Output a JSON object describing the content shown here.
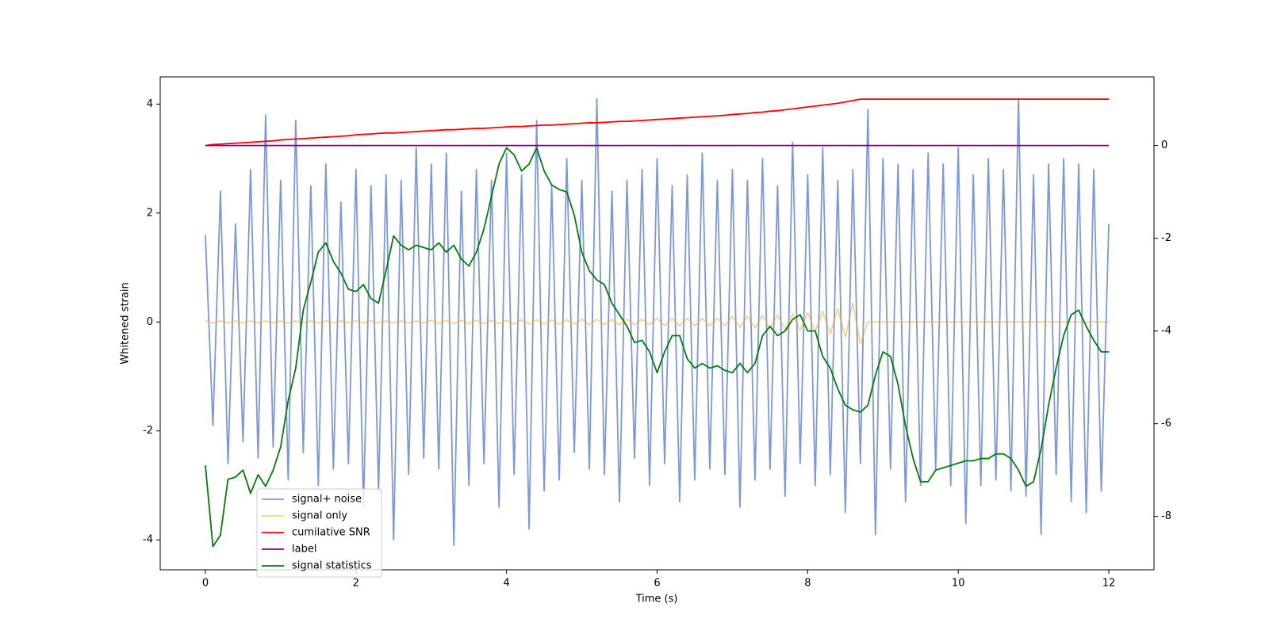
{
  "chart_data": {
    "type": "line",
    "xlabel": "Time (s)",
    "ylabel": "Whitened strain",
    "x": [
      0,
      0.1,
      0.2,
      0.3,
      0.4,
      0.5,
      0.6,
      0.7,
      0.8,
      0.9,
      1,
      1.1,
      1.2,
      1.3,
      1.4,
      1.5,
      1.6,
      1.7,
      1.8,
      1.9,
      2,
      2.1,
      2.2,
      2.3,
      2.4,
      2.5,
      2.6,
      2.7,
      2.8,
      2.9,
      3,
      3.1,
      3.2,
      3.3,
      3.4,
      3.5,
      3.6,
      3.7,
      3.8,
      3.9,
      4,
      4.1,
      4.2,
      4.3,
      4.4,
      4.5,
      4.6,
      4.7,
      4.8,
      4.9,
      5,
      5.1,
      5.2,
      5.3,
      5.4,
      5.5,
      5.6,
      5.7,
      5.8,
      5.9,
      6,
      6.1,
      6.2,
      6.3,
      6.4,
      6.5,
      6.6,
      6.7,
      6.8,
      6.9,
      7,
      7.1,
      7.2,
      7.3,
      7.4,
      7.5,
      7.6,
      7.7,
      7.8,
      7.9,
      8,
      8.1,
      8.2,
      8.3,
      8.4,
      8.5,
      8.6,
      8.7,
      8.8,
      8.9,
      9,
      9.1,
      9.2,
      9.3,
      9.4,
      9.5,
      9.6,
      9.7,
      9.8,
      9.9,
      10,
      10.1,
      10.2,
      10.3,
      10.4,
      10.5,
      10.6,
      10.7,
      10.8,
      10.9,
      11,
      11.1,
      11.2,
      11.3,
      11.4,
      11.5,
      11.6,
      11.7,
      11.8,
      11.9,
      12
    ],
    "series": [
      {
        "name": "signal+ noise",
        "color": "#4169e1",
        "alpha": 0.7,
        "values": [
          1.6,
          -1.9,
          2.4,
          -2.6,
          1.8,
          -2.2,
          2.8,
          -2.5,
          3.8,
          -2.3,
          2.6,
          -2.9,
          3.7,
          -2.4,
          2.5,
          -3.0,
          2.9,
          -2.7,
          2.2,
          -2.6,
          2.8,
          -3.4,
          2.5,
          -3.1,
          2.7,
          -4.0,
          2.6,
          -2.8,
          3.2,
          -2.5,
          2.9,
          -2.7,
          3.1,
          -4.1,
          2.4,
          -3.0,
          2.8,
          -2.6,
          2.6,
          -3.4,
          3.1,
          -2.8,
          2.7,
          -3.8,
          3.7,
          -3.1,
          2.5,
          -2.9,
          3.0,
          -2.4,
          2.6,
          -2.7,
          4.1,
          -2.8,
          2.4,
          -3.3,
          2.6,
          -2.5,
          2.8,
          -3.0,
          3.0,
          -2.6,
          2.5,
          -3.3,
          2.7,
          -2.9,
          3.1,
          -2.7,
          2.6,
          -2.8,
          2.8,
          -3.4,
          2.6,
          -2.9,
          3.0,
          -2.7,
          2.5,
          -3.2,
          3.3,
          -2.6,
          2.7,
          -3.0,
          3.2,
          -2.8,
          2.6,
          -3.5,
          2.8,
          -2.6,
          3.9,
          -3.9,
          3.0,
          -2.7,
          2.9,
          -3.3,
          2.8,
          -3.0,
          3.1,
          -2.7,
          2.9,
          -3.0,
          3.2,
          -3.7,
          2.7,
          -3.0,
          3.0,
          -2.9,
          2.8,
          -3.1,
          4.1,
          -3.2,
          2.7,
          -3.9,
          2.9,
          -2.8,
          3.0,
          -3.3,
          2.9,
          -3.5,
          2.8,
          -3.1,
          1.8
        ]
      },
      {
        "name": "signal only",
        "color": "#ffa500",
        "alpha": 0.5,
        "values": [
          0.02,
          -0.02,
          0.02,
          -0.02,
          0.02,
          -0.02,
          0.02,
          -0.02,
          0.02,
          -0.02,
          0.02,
          -0.02,
          0.02,
          -0.02,
          0.02,
          -0.02,
          0.02,
          -0.02,
          0.02,
          -0.02,
          0.02,
          -0.02,
          0.02,
          -0.02,
          0.02,
          -0.02,
          0.02,
          -0.02,
          0.02,
          -0.02,
          0.03,
          -0.03,
          0.03,
          -0.03,
          0.03,
          -0.03,
          0.03,
          -0.03,
          0.03,
          -0.03,
          0.03,
          -0.04,
          0.04,
          -0.04,
          0.04,
          -0.04,
          0.04,
          -0.04,
          0.04,
          -0.04,
          0.05,
          -0.05,
          0.05,
          -0.05,
          0.05,
          -0.05,
          0.05,
          -0.05,
          0.05,
          -0.05,
          0.07,
          -0.07,
          0.07,
          -0.07,
          0.07,
          -0.07,
          0.07,
          -0.07,
          0.07,
          -0.07,
          0.1,
          -0.1,
          0.11,
          -0.11,
          0.12,
          -0.12,
          0.13,
          -0.13,
          0.15,
          -0.15,
          0.17,
          -0.18,
          0.2,
          -0.22,
          0.25,
          -0.28,
          0.35,
          -0.4,
          0,
          0,
          0,
          0,
          0,
          0,
          0,
          0,
          0,
          0,
          0,
          0,
          0,
          0,
          0,
          0,
          0,
          0,
          0,
          0,
          0,
          0,
          0,
          0,
          0,
          0,
          0,
          0,
          0,
          0,
          0,
          0,
          0
        ]
      },
      {
        "name": "cumilative SNR",
        "color": "#ff0000",
        "axis": "y2",
        "values": [
          0,
          0.02,
          0.03,
          0.04,
          0.05,
          0.06,
          0.07,
          0.08,
          0.09,
          0.1,
          0.12,
          0.13,
          0.14,
          0.15,
          0.16,
          0.17,
          0.18,
          0.19,
          0.2,
          0.21,
          0.23,
          0.24,
          0.25,
          0.26,
          0.27,
          0.27,
          0.28,
          0.29,
          0.3,
          0.31,
          0.32,
          0.33,
          0.34,
          0.34,
          0.35,
          0.36,
          0.37,
          0.37,
          0.38,
          0.39,
          0.4,
          0.41,
          0.41,
          0.42,
          0.43,
          0.44,
          0.44,
          0.45,
          0.46,
          0.47,
          0.48,
          0.49,
          0.49,
          0.5,
          0.51,
          0.52,
          0.52,
          0.53,
          0.54,
          0.55,
          0.56,
          0.57,
          0.58,
          0.59,
          0.6,
          0.61,
          0.62,
          0.63,
          0.64,
          0.65,
          0.67,
          0.68,
          0.69,
          0.71,
          0.72,
          0.74,
          0.75,
          0.77,
          0.79,
          0.81,
          0.83,
          0.85,
          0.87,
          0.89,
          0.91,
          0.94,
          0.97,
          1.0,
          1.0,
          1.0,
          1.0,
          1.0,
          1.0,
          1.0,
          1.0,
          1.0,
          1.0,
          1.0,
          1.0,
          1.0,
          1.0,
          1.0,
          1.0,
          1.0,
          1.0,
          1.0,
          1.0,
          1.0,
          1.0,
          1.0,
          1.0,
          1.0,
          1.0,
          1.0,
          1.0,
          1.0,
          1.0,
          1.0,
          1.0,
          1.0,
          1.0
        ]
      },
      {
        "name": "label",
        "color": "#800080",
        "axis": "y2",
        "values": [
          0,
          0,
          0,
          0,
          0,
          0,
          0,
          0,
          0,
          0,
          0,
          0,
          0,
          0,
          0,
          0,
          0,
          0,
          0,
          0,
          0,
          0,
          0,
          0,
          0,
          0,
          0,
          0,
          0,
          0,
          0,
          0,
          0,
          0,
          0,
          0,
          0,
          0,
          0,
          0,
          0,
          0,
          0,
          0,
          0,
          0,
          0,
          0,
          0,
          0,
          0,
          0,
          0,
          0,
          0,
          0,
          0,
          0,
          0,
          0,
          0,
          0,
          0,
          0,
          0,
          0,
          0,
          0,
          0,
          0,
          0,
          0,
          0,
          0,
          0,
          0,
          0,
          0,
          0,
          0,
          0,
          0,
          0,
          0,
          0,
          0,
          0,
          0,
          0,
          0,
          0,
          0,
          0,
          0,
          0,
          0,
          0,
          0,
          0,
          0,
          0,
          0,
          0,
          0,
          0,
          0,
          0,
          0,
          0,
          0,
          0,
          0,
          0,
          0,
          0,
          0,
          0,
          0,
          0,
          0,
          0
        ]
      },
      {
        "name": "signal statistics",
        "color": "#008000",
        "axis": "y2",
        "values": [
          -6.9,
          -8.65,
          -8.4,
          -7.2,
          -7.15,
          -7.0,
          -7.5,
          -7.1,
          -7.35,
          -7.0,
          -6.5,
          -5.5,
          -4.8,
          -3.55,
          -2.95,
          -2.3,
          -2.1,
          -2.5,
          -2.75,
          -3.1,
          -3.15,
          -3.0,
          -3.3,
          -3.4,
          -2.7,
          -1.95,
          -2.15,
          -2.25,
          -2.15,
          -2.2,
          -2.25,
          -2.1,
          -2.3,
          -2.15,
          -2.45,
          -2.6,
          -2.3,
          -1.8,
          -1.1,
          -0.4,
          -0.05,
          -0.2,
          -0.55,
          -0.4,
          -0.05,
          -0.55,
          -0.85,
          -0.95,
          -1.0,
          -1.5,
          -2.3,
          -2.7,
          -2.9,
          -3.0,
          -3.4,
          -3.65,
          -3.9,
          -4.25,
          -4.2,
          -4.45,
          -4.9,
          -4.45,
          -4.1,
          -4.1,
          -4.6,
          -4.8,
          -4.7,
          -4.8,
          -4.75,
          -4.85,
          -4.9,
          -4.7,
          -4.9,
          -4.7,
          -4.1,
          -3.9,
          -4.1,
          -4.0,
          -3.75,
          -3.65,
          -4.0,
          -4.0,
          -4.55,
          -4.8,
          -5.25,
          -5.6,
          -5.7,
          -5.75,
          -5.6,
          -4.95,
          -4.45,
          -4.55,
          -5.15,
          -6.05,
          -6.75,
          -7.25,
          -7.25,
          -7.0,
          -6.95,
          -6.9,
          -6.85,
          -6.8,
          -6.8,
          -6.75,
          -6.75,
          -6.65,
          -6.65,
          -6.75,
          -7.0,
          -7.35,
          -7.25,
          -6.55,
          -5.6,
          -4.8,
          -4.1,
          -3.65,
          -3.55,
          -3.9,
          -4.2,
          -4.45,
          -4.45
        ]
      }
    ],
    "xlim": [
      -0.6,
      12.6
    ],
    "xticks": [
      0,
      2,
      4,
      6,
      8,
      10,
      12
    ],
    "ylim": [
      -4.55,
      4.5
    ],
    "yticks": [
      -4,
      -2,
      0,
      2,
      4
    ],
    "y2lim": [
      -9.15,
      1.48
    ],
    "y2ticks": [
      -8,
      -6,
      -4,
      -2,
      0
    ],
    "grid": false,
    "legend": "lower left"
  }
}
